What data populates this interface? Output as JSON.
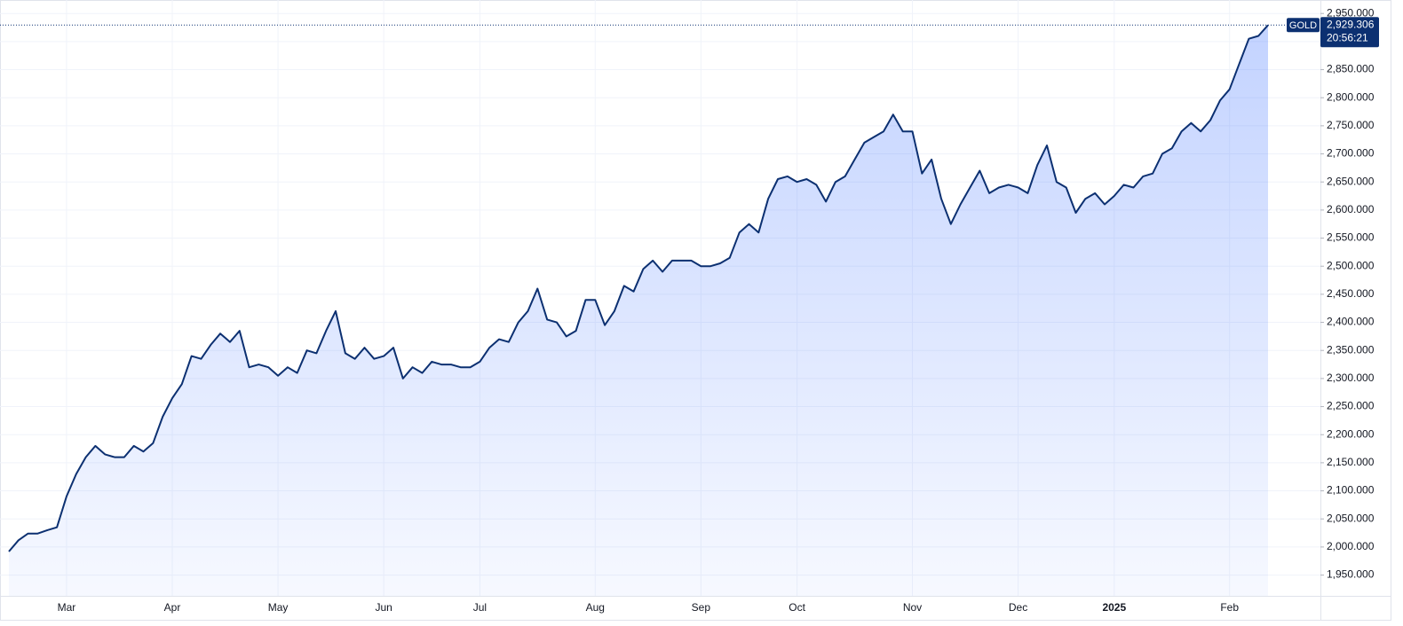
{
  "chart_data": {
    "type": "area",
    "series": [
      {
        "name": "GOLD",
        "color": "#0c3071",
        "values": [
          1992,
          2012,
          2024,
          2024,
          2030,
          2035,
          2090,
          2130,
          2160,
          2180,
          2165,
          2160,
          2160,
          2180,
          2170,
          2185,
          2232,
          2265,
          2290,
          2340,
          2335,
          2360,
          2380,
          2365,
          2385,
          2320,
          2325,
          2320,
          2305,
          2320,
          2310,
          2350,
          2345,
          2385,
          2420,
          2345,
          2335,
          2355,
          2335,
          2340,
          2355,
          2300,
          2320,
          2310,
          2330,
          2325,
          2325,
          2320,
          2320,
          2330,
          2355,
          2370,
          2365,
          2400,
          2420,
          2460,
          2405,
          2400,
          2375,
          2385,
          2440,
          2440,
          2395,
          2420,
          2465,
          2455,
          2495,
          2510,
          2490,
          2510,
          2510,
          2510,
          2500,
          2500,
          2505,
          2515,
          2560,
          2575,
          2560,
          2620,
          2655,
          2660,
          2650,
          2655,
          2645,
          2615,
          2650,
          2660,
          2690,
          2720,
          2730,
          2740,
          2770,
          2740,
          2740,
          2665,
          2690,
          2620,
          2575,
          2610,
          2640,
          2670,
          2630,
          2640,
          2645,
          2640,
          2630,
          2680,
          2715,
          2650,
          2640,
          2595,
          2620,
          2630,
          2610,
          2625,
          2645,
          2640,
          2660,
          2665,
          2700,
          2710,
          2740,
          2755,
          2740,
          2760,
          2795,
          2815,
          2860,
          2905,
          2910,
          2929.306
        ]
      }
    ],
    "categories": [
      null,
      null,
      null,
      null,
      null,
      null,
      "Mar",
      null,
      null,
      null,
      null,
      null,
      null,
      null,
      null,
      null,
      null,
      "Apr",
      null,
      null,
      null,
      null,
      null,
      null,
      null,
      null,
      null,
      null,
      "May",
      null,
      null,
      null,
      null,
      null,
      null,
      null,
      null,
      null,
      null,
      "Jun",
      null,
      null,
      null,
      null,
      null,
      null,
      null,
      null,
      null,
      "Jul",
      null,
      null,
      null,
      null,
      null,
      null,
      null,
      null,
      null,
      null,
      null,
      "Aug",
      null,
      null,
      null,
      null,
      null,
      null,
      null,
      null,
      null,
      null,
      "Sep",
      null,
      null,
      null,
      null,
      null,
      null,
      null,
      null,
      null,
      "Oct",
      null,
      null,
      null,
      null,
      null,
      null,
      null,
      null,
      null,
      null,
      null,
      "Nov",
      null,
      null,
      null,
      null,
      null,
      null,
      null,
      null,
      null,
      null,
      "Dec",
      null,
      null,
      null,
      null,
      null,
      null,
      null,
      null,
      null,
      "2025",
      null,
      null,
      null,
      null,
      null,
      null,
      null,
      null,
      null,
      null,
      null,
      "Feb",
      null,
      null,
      null,
      null
    ],
    "last_value_label": "2,929.306",
    "countdown": "20:56:21",
    "ylim": [
      1913,
      2974
    ],
    "yticks": [
      {
        "value": 1950,
        "label": "1,950.000"
      },
      {
        "value": 2000,
        "label": "2,000.000"
      },
      {
        "value": 2050,
        "label": "2,050.000"
      },
      {
        "value": 2100,
        "label": "2,100.000"
      },
      {
        "value": 2150,
        "label": "2,150.000"
      },
      {
        "value": 2200,
        "label": "2,200.000"
      },
      {
        "value": 2250,
        "label": "2,250.000"
      },
      {
        "value": 2300,
        "label": "2,300.000"
      },
      {
        "value": 2350,
        "label": "2,350.000"
      },
      {
        "value": 2400,
        "label": "2,400.000"
      },
      {
        "value": 2450,
        "label": "2,450.000"
      },
      {
        "value": 2500,
        "label": "2,500.000"
      },
      {
        "value": 2550,
        "label": "2,550.000"
      },
      {
        "value": 2600,
        "label": "2,600.000"
      },
      {
        "value": 2650,
        "label": "2,650.000"
      },
      {
        "value": 2700,
        "label": "2,700.000"
      },
      {
        "value": 2750,
        "label": "2,750.000"
      },
      {
        "value": 2800,
        "label": "2,800.000"
      },
      {
        "value": 2850,
        "label": "2,850.000"
      },
      {
        "value": 2900,
        "label": "2,900.000"
      },
      {
        "value": 2950,
        "label": "2,950.000"
      }
    ],
    "grid": true
  }
}
